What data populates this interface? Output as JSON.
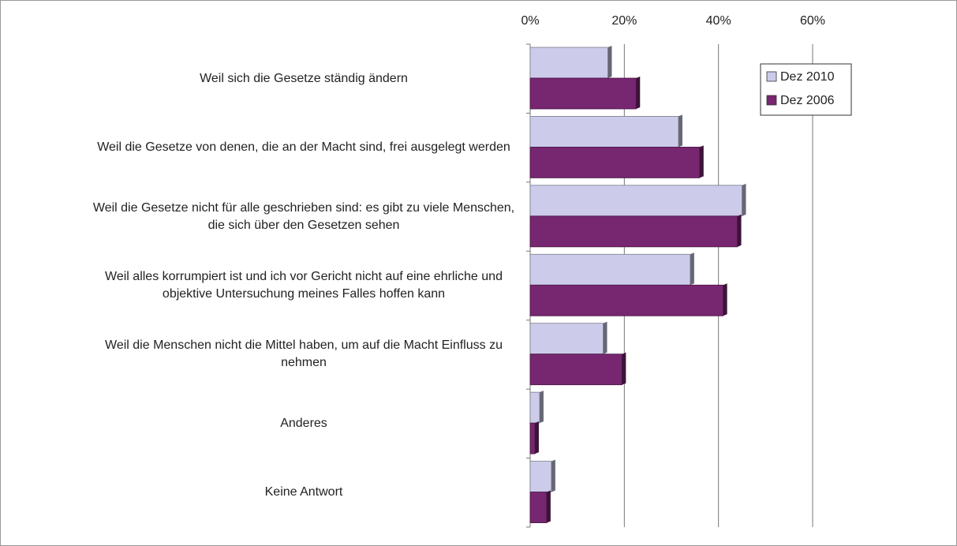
{
  "chart_data": {
    "type": "bar",
    "orientation": "horizontal",
    "categories": [
      "Weil sich die Gesetze ständig ändern",
      "Weil die Gesetze von denen, die an der Macht sind, frei ausgelegt werden",
      "Weil die Gesetze nicht für alle geschrieben sind: es gibt zu viele Menschen, die sich über den Gesetzen sehen",
      "Weil alles korrumpiert ist und ich vor Gericht nicht auf eine ehrliche und objektive Untersuchung meines Falles hoffen kann",
      "Weil die Menschen nicht die Mittel haben, um auf die Macht Einfluss zu nehmen",
      "Anderes",
      "Keine Antwort"
    ],
    "series": [
      {
        "name": "Dez 2010",
        "color": "#ccccea",
        "values": [
          16.5,
          31.5,
          45,
          34,
          15.5,
          2,
          4.5
        ]
      },
      {
        "name": "Dez 2006",
        "color": "#772670",
        "values": [
          22.5,
          36,
          44,
          41,
          19.5,
          1,
          3.5
        ]
      }
    ],
    "xlim": [
      0,
      60
    ],
    "xticks": [
      {
        "value": 0,
        "label": "0%"
      },
      {
        "value": 20,
        "label": "20%"
      },
      {
        "value": 40,
        "label": "40%"
      },
      {
        "value": 60,
        "label": "60%"
      }
    ],
    "grid": true,
    "legend": "top-right"
  }
}
